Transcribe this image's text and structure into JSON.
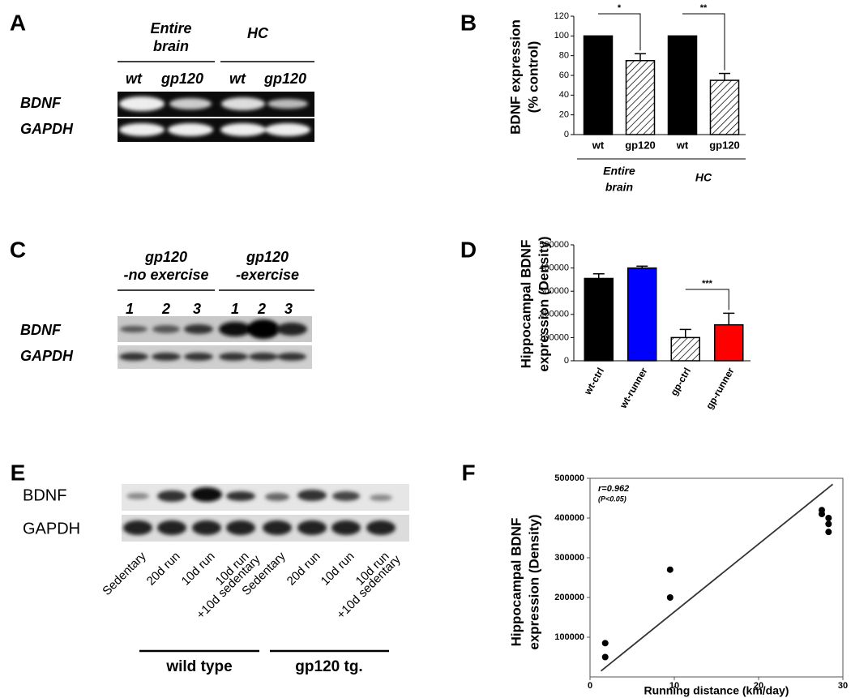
{
  "panels": [
    "A",
    "B",
    "C",
    "D",
    "E",
    "F"
  ],
  "blot_a": {
    "groups": [
      [
        "Entire",
        "brain"
      ],
      [
        "HC"
      ]
    ],
    "lanes": [
      "wt",
      "gp120",
      "wt",
      "gp120"
    ],
    "rows": [
      "BDNF",
      "GAPDH"
    ]
  },
  "blot_c": {
    "groups": [
      [
        "gp120",
        "-no exercise"
      ],
      [
        "gp120",
        "-exercise"
      ]
    ],
    "lanes": [
      "1",
      "2",
      "3",
      "1",
      "2",
      "3"
    ],
    "rows": [
      "BDNF",
      "GAPDH"
    ]
  },
  "blot_e": {
    "lanes": [
      [
        "Sedentary"
      ],
      [
        "20d run"
      ],
      [
        "10d run"
      ],
      [
        "10d run",
        "+10d sedentary"
      ],
      [
        "Sedentary"
      ],
      [
        "20d run"
      ],
      [
        "10d run"
      ],
      [
        "10d run",
        "+10d sedentary"
      ]
    ],
    "groups": [
      "wild type",
      "gp120 tg."
    ],
    "rows": [
      "BDNF",
      "GAPDH"
    ]
  },
  "chart_data": [
    {
      "type": "bar",
      "ylabel": [
        "BDNF expression",
        "(% control)"
      ],
      "categories": [
        "wt",
        "gp120",
        "wt",
        "gp120"
      ],
      "values": [
        100,
        75,
        100,
        55
      ],
      "errors": [
        0,
        7,
        0,
        7
      ],
      "fills": [
        "black",
        "hatch",
        "black",
        "hatch"
      ],
      "groups": [
        [
          "Entire",
          "brain"
        ],
        [
          "HC"
        ]
      ],
      "significance": [
        "*",
        "**"
      ],
      "ylim": [
        0,
        120
      ],
      "yticks": [
        0,
        20,
        40,
        60,
        80,
        100,
        120
      ]
    },
    {
      "type": "bar",
      "ylabel": [
        "Hippocampal BDNF",
        "expression (Density)"
      ],
      "categories": [
        "wt-ctrl",
        "wt-runner",
        "gp-ctrl",
        "gp-runner"
      ],
      "values": [
        355000,
        400000,
        100000,
        155000
      ],
      "errors": [
        20000,
        8000,
        35000,
        50000
      ],
      "fills": [
        "#000000",
        "#0000ff",
        "hatch",
        "#ff0000"
      ],
      "significance": [
        "***"
      ],
      "ylim": [
        0,
        500000
      ],
      "yticks": [
        0,
        100000,
        200000,
        300000,
        400000,
        500000
      ]
    },
    {
      "type": "scatter",
      "ylabel": [
        "Hippocampal BDNF",
        "expression (Density)"
      ],
      "xlabel": "Running distance (km/day)",
      "annotations": [
        "r=0.962",
        "(P<0.05)"
      ],
      "x": [
        1.8,
        1.8,
        9.5,
        9.5,
        27.5,
        27.5,
        28.3,
        28.3,
        28.3
      ],
      "values": [
        85000,
        50000,
        270000,
        200000,
        420000,
        410000,
        400000,
        385000,
        365000
      ],
      "fit_line": {
        "x": [
          1.3,
          28.8
        ],
        "y": [
          15000,
          485000
        ]
      },
      "xlim": [
        0,
        30
      ],
      "xticks": [
        0,
        10,
        20,
        30
      ],
      "ylim": [
        0,
        500000
      ],
      "yticks": [
        100000,
        200000,
        300000,
        400000,
        500000
      ]
    }
  ]
}
